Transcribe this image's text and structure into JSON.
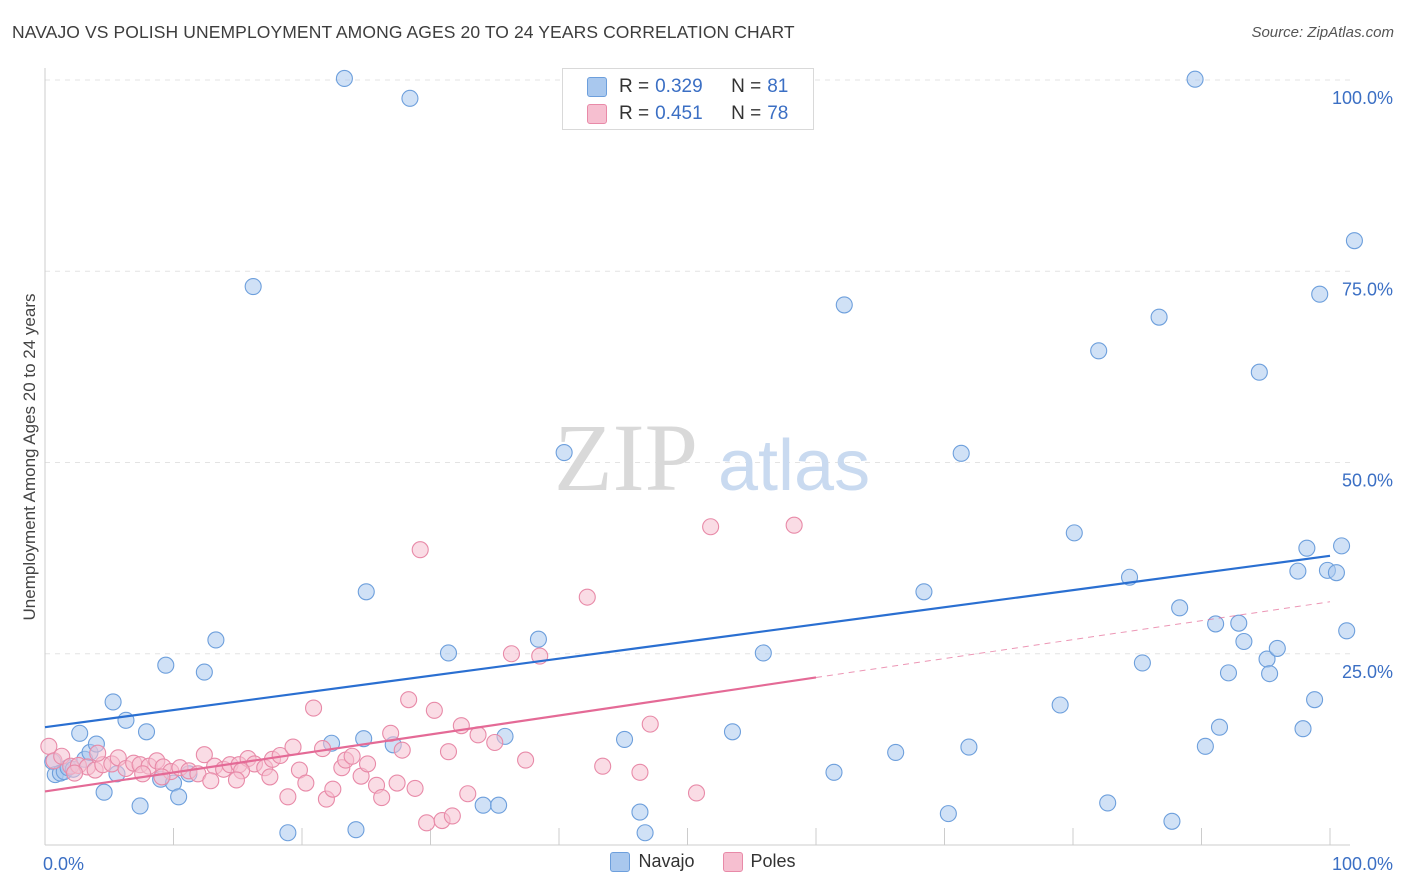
{
  "title": "NAVAJO VS POLISH UNEMPLOYMENT AMONG AGES 20 TO 24 YEARS CORRELATION CHART",
  "source": "Source: ZipAtlas.com",
  "watermark": {
    "zip": "ZIP",
    "atlas": "atlas"
  },
  "legend_top": {
    "rows": [
      {
        "r_label": "R =",
        "r_value": "0.329",
        "n_label": "N =",
        "n_value": "81"
      },
      {
        "r_label": "R =",
        "r_value": "0.451",
        "n_label": "N =",
        "n_value": "78"
      }
    ]
  },
  "legend_bottom": {
    "navajo": "Navajo",
    "poles": "Poles"
  },
  "colors": {
    "navajo_fill": "#a9c8ee",
    "navajo_stroke": "#6d9fdc",
    "navajo_line": "#2a6fd1",
    "poles_fill": "#f6bfd0",
    "poles_stroke": "#e88aa8",
    "poles_line": "#e46a96",
    "tick_label": "#3b6fc4",
    "grid": "#e3e3e3"
  },
  "chart_data": {
    "type": "scatter",
    "title": "NAVAJO VS POLISH UNEMPLOYMENT AMONG AGES 20 TO 24 YEARS CORRELATION CHART",
    "xlabel": "",
    "ylabel": "Unemployment Among Ages 20 to 24 years",
    "xlim": [
      0,
      100
    ],
    "ylim": [
      0,
      100
    ],
    "x_tick_labels": [
      {
        "value": 0,
        "label": "0.0%"
      },
      {
        "value": 100,
        "label": "100.0%"
      }
    ],
    "y_tick_labels": [
      {
        "value": 25,
        "label": "25.0%"
      },
      {
        "value": 50,
        "label": "50.0%"
      },
      {
        "value": 75,
        "label": "75.0%"
      },
      {
        "value": 100,
        "label": "100.0%"
      }
    ],
    "series": [
      {
        "name": "Navajo",
        "points": [
          [
            0.6,
            10.9
          ],
          [
            0.8,
            9.2
          ],
          [
            1.2,
            9.4
          ],
          [
            1.5,
            9.6
          ],
          [
            1.8,
            10.1
          ],
          [
            2.2,
            9.9
          ],
          [
            2.7,
            14.6
          ],
          [
            3.1,
            11.2
          ],
          [
            3.5,
            12.1
          ],
          [
            4.0,
            13.2
          ],
          [
            4.6,
            6.9
          ],
          [
            5.3,
            18.7
          ],
          [
            5.6,
            9.3
          ],
          [
            6.3,
            16.3
          ],
          [
            7.4,
            5.1
          ],
          [
            7.9,
            14.8
          ],
          [
            9.0,
            8.6
          ],
          [
            9.4,
            23.5
          ],
          [
            10.0,
            8.1
          ],
          [
            10.4,
            6.3
          ],
          [
            11.2,
            9.3
          ],
          [
            12.4,
            22.6
          ],
          [
            13.3,
            26.8
          ],
          [
            16.2,
            73.0
          ],
          [
            18.9,
            1.6
          ],
          [
            22.3,
            13.3
          ],
          [
            23.3,
            100.2
          ],
          [
            24.2,
            2.0
          ],
          [
            24.8,
            13.9
          ],
          [
            25.0,
            33.1
          ],
          [
            27.1,
            13.1
          ],
          [
            28.4,
            97.6
          ],
          [
            31.4,
            25.1
          ],
          [
            34.1,
            5.2
          ],
          [
            35.3,
            5.2
          ],
          [
            35.8,
            14.2
          ],
          [
            38.4,
            26.9
          ],
          [
            40.4,
            51.3
          ],
          [
            45.1,
            13.8
          ],
          [
            46.3,
            4.3
          ],
          [
            46.7,
            1.6
          ],
          [
            53.0,
            100.3
          ],
          [
            53.5,
            14.8
          ],
          [
            55.9,
            25.1
          ],
          [
            61.4,
            9.5
          ],
          [
            62.2,
            70.6
          ],
          [
            66.2,
            12.1
          ],
          [
            68.4,
            33.1
          ],
          [
            70.3,
            4.1
          ],
          [
            71.3,
            51.2
          ],
          [
            71.9,
            12.8
          ],
          [
            79.0,
            18.3
          ],
          [
            80.1,
            40.8
          ],
          [
            82.0,
            64.6
          ],
          [
            82.7,
            5.5
          ],
          [
            84.4,
            35.0
          ],
          [
            85.4,
            23.8
          ],
          [
            86.7,
            69.0
          ],
          [
            87.7,
            3.1
          ],
          [
            88.3,
            31.0
          ],
          [
            89.5,
            100.1
          ],
          [
            90.3,
            12.9
          ],
          [
            91.1,
            28.9
          ],
          [
            91.4,
            15.4
          ],
          [
            92.1,
            22.5
          ],
          [
            92.9,
            29.0
          ],
          [
            93.3,
            26.6
          ],
          [
            94.5,
            61.8
          ],
          [
            95.1,
            24.3
          ],
          [
            95.3,
            22.4
          ],
          [
            95.9,
            25.7
          ],
          [
            97.5,
            35.8
          ],
          [
            97.9,
            15.2
          ],
          [
            98.2,
            38.8
          ],
          [
            98.8,
            19.0
          ],
          [
            99.2,
            72.0
          ],
          [
            99.8,
            35.9
          ],
          [
            100.5,
            35.6
          ],
          [
            100.9,
            39.1
          ],
          [
            101.3,
            28.0
          ],
          [
            101.9,
            79.0
          ]
        ],
        "trend": {
          "x": [
            0,
            100
          ],
          "y": [
            15.4,
            37.8
          ]
        }
      },
      {
        "name": "Poles",
        "points": [
          [
            0.3,
            12.9
          ],
          [
            0.7,
            11.0
          ],
          [
            1.3,
            11.6
          ],
          [
            2.0,
            10.3
          ],
          [
            2.6,
            10.4
          ],
          [
            3.3,
            10.2
          ],
          [
            3.9,
            9.8
          ],
          [
            4.5,
            10.5
          ],
          [
            5.2,
            10.6
          ],
          [
            5.7,
            11.4
          ],
          [
            6.3,
            10.0
          ],
          [
            6.9,
            10.7
          ],
          [
            7.4,
            10.5
          ],
          [
            8.1,
            10.3
          ],
          [
            8.7,
            11.0
          ],
          [
            9.2,
            10.2
          ],
          [
            9.8,
            9.6
          ],
          [
            10.5,
            10.1
          ],
          [
            11.2,
            9.7
          ],
          [
            11.9,
            9.3
          ],
          [
            12.4,
            11.8
          ],
          [
            13.2,
            10.3
          ],
          [
            13.9,
            9.9
          ],
          [
            14.4,
            10.5
          ],
          [
            15.1,
            10.5
          ],
          [
            15.8,
            11.3
          ],
          [
            16.3,
            10.6
          ],
          [
            17.1,
            10.1
          ],
          [
            17.7,
            11.2
          ],
          [
            18.3,
            11.7
          ],
          [
            18.9,
            6.3
          ],
          [
            19.3,
            12.8
          ],
          [
            19.8,
            9.8
          ],
          [
            20.3,
            8.1
          ],
          [
            20.9,
            17.9
          ],
          [
            21.6,
            12.6
          ],
          [
            21.9,
            6.0
          ],
          [
            22.4,
            7.3
          ],
          [
            23.1,
            10.1
          ],
          [
            23.4,
            11.1
          ],
          [
            23.9,
            11.6
          ],
          [
            24.6,
            9.0
          ],
          [
            25.1,
            10.6
          ],
          [
            25.8,
            7.8
          ],
          [
            26.2,
            6.2
          ],
          [
            26.9,
            14.6
          ],
          [
            27.4,
            8.1
          ],
          [
            27.8,
            12.4
          ],
          [
            28.3,
            19.0
          ],
          [
            28.8,
            7.4
          ],
          [
            29.2,
            38.6
          ],
          [
            29.7,
            2.9
          ],
          [
            30.3,
            17.6
          ],
          [
            30.9,
            3.2
          ],
          [
            31.4,
            12.2
          ],
          [
            31.7,
            3.8
          ],
          [
            32.4,
            15.6
          ],
          [
            32.9,
            6.7
          ],
          [
            33.7,
            14.4
          ],
          [
            35.0,
            13.4
          ],
          [
            36.3,
            25.0
          ],
          [
            37.4,
            11.1
          ],
          [
            38.5,
            24.7
          ],
          [
            42.2,
            32.4
          ],
          [
            43.4,
            10.3
          ],
          [
            46.3,
            9.5
          ],
          [
            47.1,
            15.8
          ],
          [
            50.7,
            6.8
          ],
          [
            51.8,
            41.6
          ],
          [
            58.3,
            41.8
          ],
          [
            4.1,
            12.0
          ],
          [
            7.6,
            9.3
          ],
          [
            12.9,
            8.4
          ],
          [
            15.3,
            9.7
          ],
          [
            17.5,
            8.9
          ],
          [
            2.3,
            9.4
          ],
          [
            9.1,
            8.9
          ],
          [
            14.9,
            8.5
          ]
        ],
        "trend": {
          "x": [
            0,
            60
          ],
          "y": [
            7.0,
            21.9
          ]
        },
        "trend_dashed": {
          "x": [
            60,
            100
          ],
          "y": [
            21.9,
            31.8
          ]
        }
      }
    ]
  }
}
